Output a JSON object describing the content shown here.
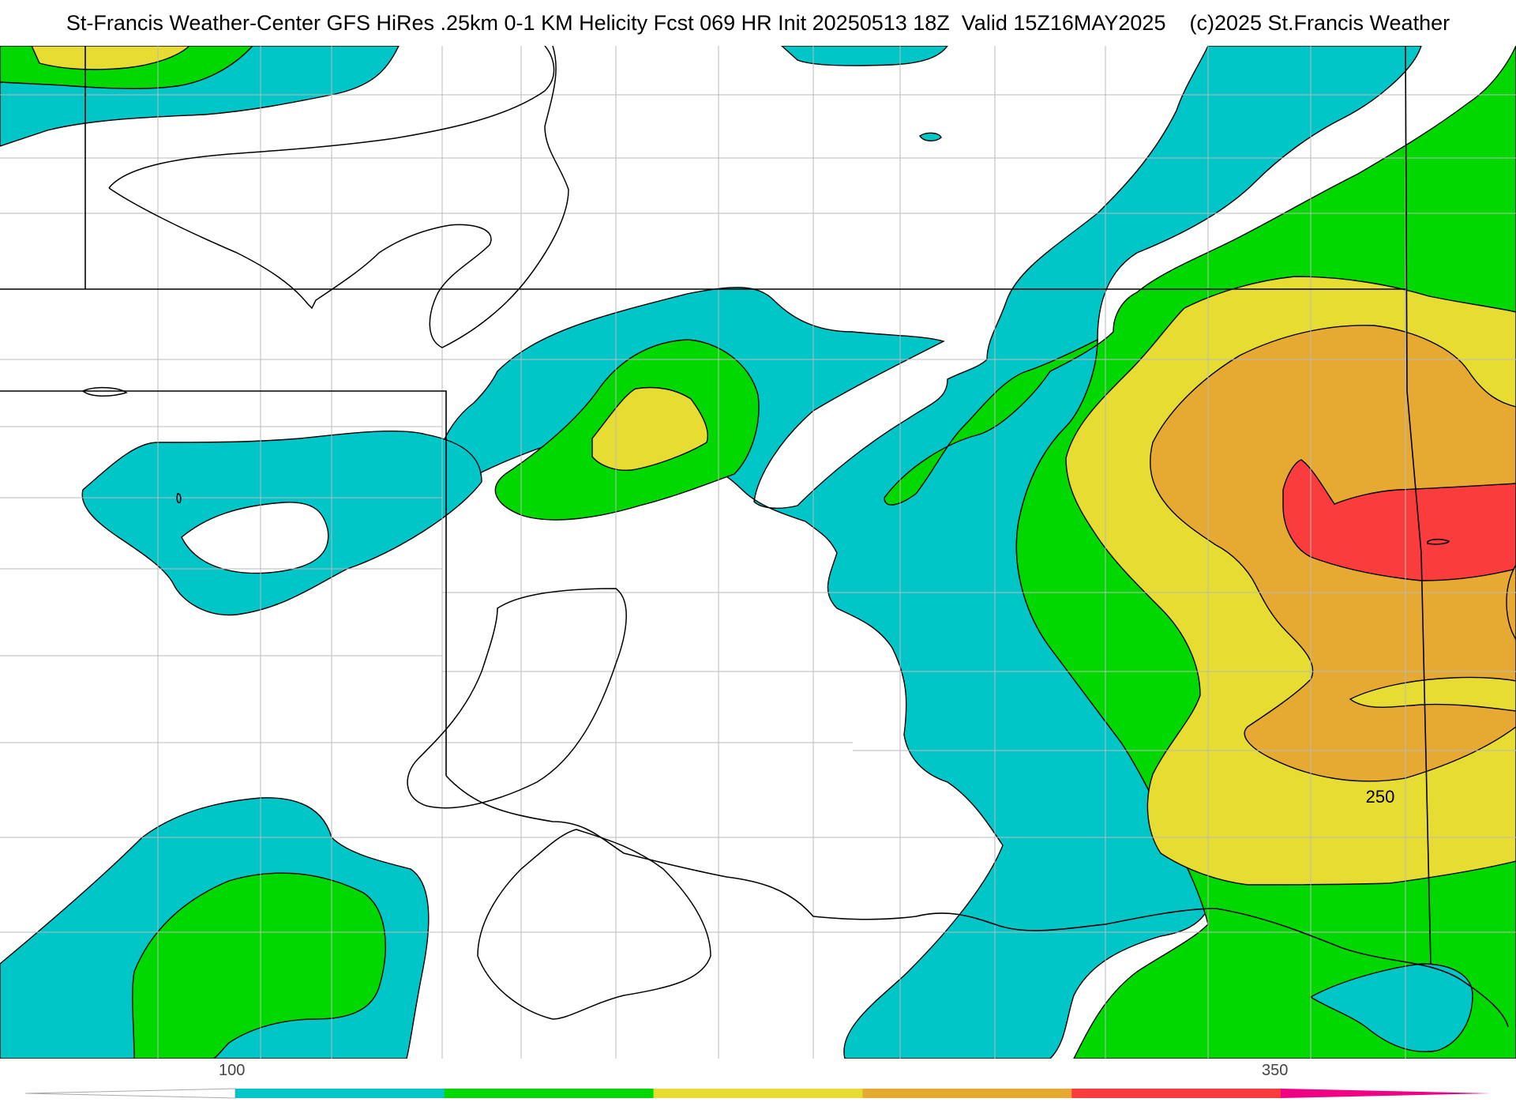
{
  "header": {
    "title": "St-Francis Weather-Center GFS HiRes .25km 0-1 KM Helicity Fcst 069 HR Init 20250513 18Z  Valid 15Z16MAY2025    (c)2025 St.Francis Weather"
  },
  "map": {
    "contour_label": "250",
    "field": "0-1 KM Helicity"
  },
  "colorbar": {
    "tick_labels": [
      "100",
      "350"
    ],
    "bins": [
      {
        "color": "#00c6c8"
      },
      {
        "color": "#00d800"
      },
      {
        "color": "#e6dc32"
      },
      {
        "color": "#e6aa32"
      },
      {
        "color": "#fa3c3c"
      },
      {
        "color": "#f00082"
      }
    ],
    "below_color": "#ffffff"
  },
  "colors": {
    "cyan": "#00c6c8",
    "green": "#00d800",
    "yellow": "#e6dc32",
    "orange": "#e6aa32",
    "red": "#fa3c3c"
  }
}
